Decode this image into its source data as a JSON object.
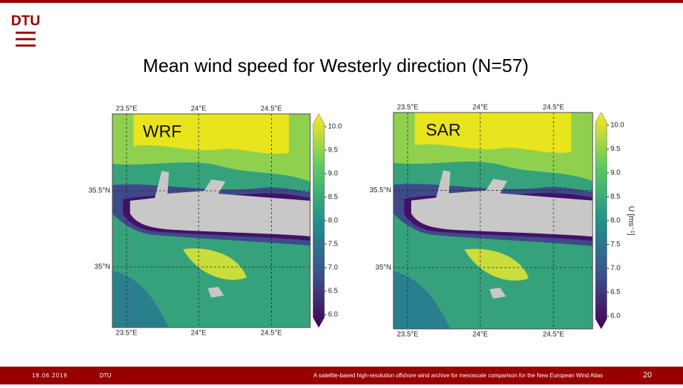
{
  "header": {
    "logo": "DTU",
    "title": "Mean wind speed for Westerly direction (N=57)"
  },
  "panels": [
    {
      "label": "WRF",
      "lon_labels": [
        "23.5°E",
        "24°E",
        "24.5°E"
      ],
      "lat_labels": [
        "35.5°N",
        "35°N"
      ],
      "colorbar_ticks": [
        "10.0",
        "9.5",
        "9.0",
        "8.5",
        "8.0",
        "7.5",
        "7.0",
        "6.5",
        "6.0"
      ]
    },
    {
      "label": "SAR",
      "lon_labels": [
        "23.5°E",
        "24°E",
        "24.5°E"
      ],
      "lat_labels": [
        "35.5°N",
        "35°N"
      ],
      "colorbar_ticks": [
        "10.0",
        "9.5",
        "9.0",
        "8.5",
        "8.0",
        "7.5",
        "7.0",
        "6.5",
        "6.0"
      ],
      "colorbar_unit": "U [ms⁻¹]"
    }
  ],
  "footer": {
    "date": "18.06.2019",
    "org": "DTU",
    "text": "A satellite-based high-resolution offshore wind archive for mesoscale comparison for the New European Wind Atlas",
    "page": "20"
  }
}
